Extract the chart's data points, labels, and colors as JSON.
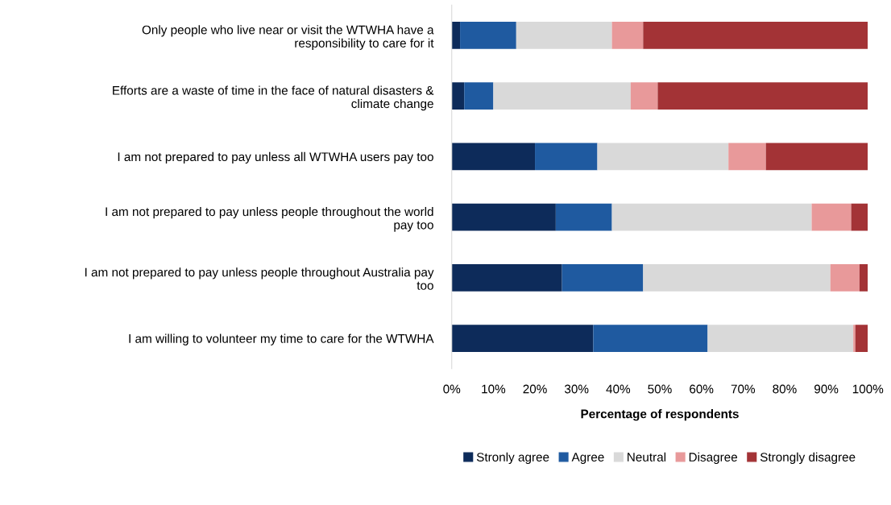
{
  "chart_data": {
    "type": "bar",
    "orientation": "horizontal",
    "stacked": true,
    "xlabel": "Percentage of respondents",
    "categories": [
      "Only people who live near or visit the WTWHA have a\nresponsibility to care for it",
      "Efforts are a waste of time in the face of natural disasters &\nclimate change",
      "I am not prepared to pay unless all WTWHA users pay too",
      "I am not prepared to pay unless people throughout the world\npay too",
      "I am not prepared to pay unless people throughout Australia pay\ntoo",
      "I am willing to volunteer my time to care for the WTWHA"
    ],
    "series": [
      {
        "name": "Stronly agree",
        "color": "#0d2b5a",
        "values": [
          2,
          3,
          20,
          25,
          26.5,
          34
        ]
      },
      {
        "name": "Agree",
        "color": "#1f5aa0",
        "values": [
          13.5,
          7,
          15,
          13.5,
          19.5,
          27.5
        ]
      },
      {
        "name": "Neutral",
        "color": "#d9d9d9",
        "values": [
          23,
          33,
          31.5,
          48,
          45,
          35
        ]
      },
      {
        "name": "Disagree",
        "color": "#e8999a",
        "values": [
          7.5,
          6.5,
          9,
          9.5,
          7,
          0.5
        ]
      },
      {
        "name": "Strongly disagree",
        "color": "#a33336",
        "values": [
          54,
          50.5,
          24.5,
          4,
          2,
          3
        ]
      }
    ],
    "xlim": [
      0,
      100
    ],
    "xticks": [
      {
        "value": 0,
        "label": "0%"
      },
      {
        "value": 10,
        "label": "10%"
      },
      {
        "value": 20,
        "label": "20%"
      },
      {
        "value": 30,
        "label": "30%"
      },
      {
        "value": 40,
        "label": "40%"
      },
      {
        "value": 50,
        "label": "50%"
      },
      {
        "value": 60,
        "label": "60%"
      },
      {
        "value": 70,
        "label": "70%"
      },
      {
        "value": 80,
        "label": "80%"
      },
      {
        "value": 90,
        "label": "90%"
      },
      {
        "value": 100,
        "label": "100%"
      }
    ],
    "legend": "bottom",
    "grid": false
  }
}
